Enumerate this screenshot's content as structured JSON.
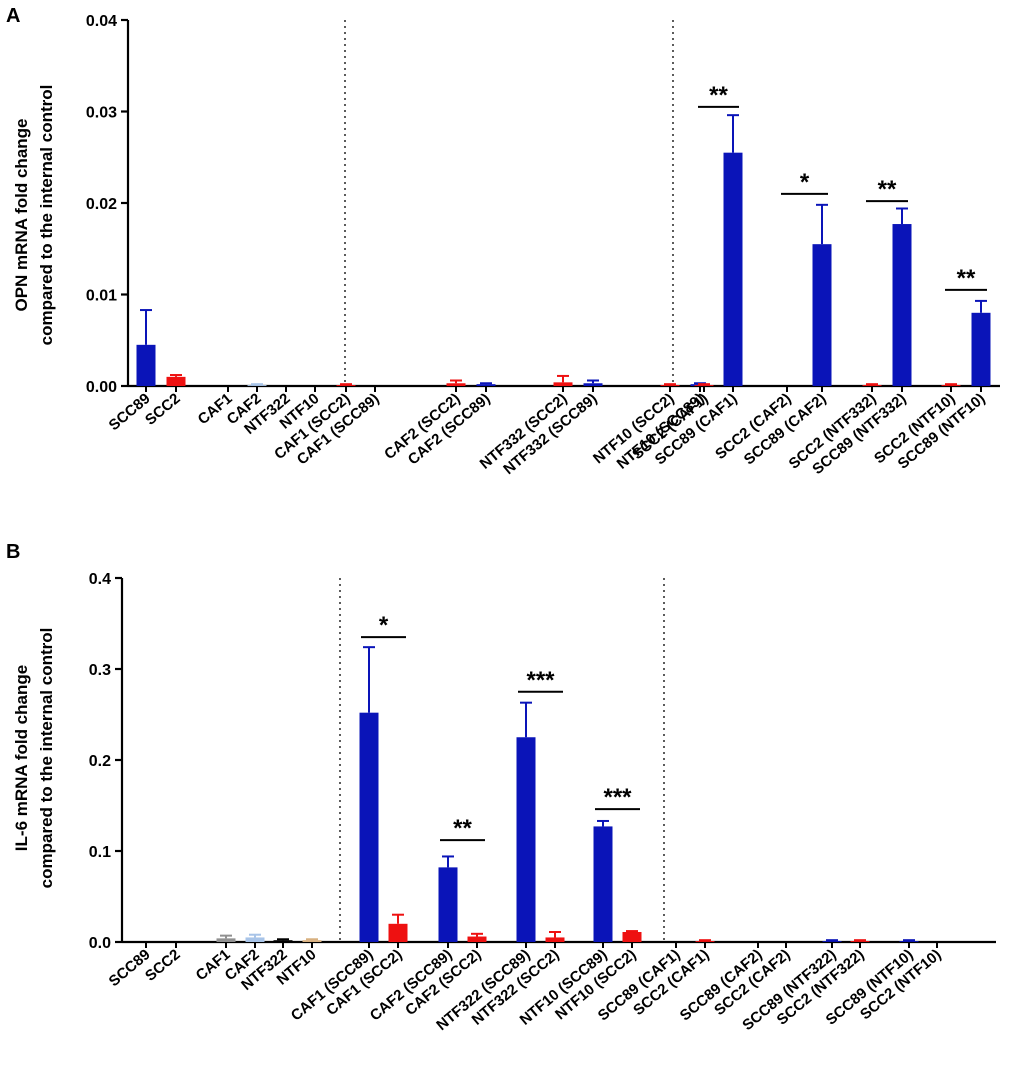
{
  "chart_data": [
    {
      "panel": "A",
      "type": "bar",
      "ylabel": [
        "OPN mRNA fold change",
        "compared to the internal control"
      ],
      "ylim": [
        0,
        0.04
      ],
      "yticks": [
        "0.00",
        "0.01",
        "0.02",
        "0.03",
        "0.04"
      ],
      "ytick_values": [
        0,
        0.01,
        0.02,
        0.03,
        0.04
      ],
      "colors": {
        "blue": "#0a14b8",
        "red": "#ee1111",
        "lightblue": "#a8c4e8",
        "grey": "#909090",
        "tan": "#d8b080",
        "black": "#000000"
      },
      "bars": [
        {
          "label": "SCC89",
          "value": 0.0045,
          "error": 0.0038,
          "color": "blue"
        },
        {
          "label": "SCC2",
          "value": 0.001,
          "error": 0.0002,
          "color": "red"
        },
        {
          "label": "CAF1",
          "value": 0.0,
          "error": 0.0,
          "color": "black"
        },
        {
          "label": "CAF2",
          "value": 0.0001,
          "error": 0.0001,
          "color": "lightblue"
        },
        {
          "label": "NTF322",
          "value": 0.0,
          "error": 0.0,
          "color": "grey"
        },
        {
          "label": "NTF10",
          "value": 0.0,
          "error": 0.0,
          "color": "tan"
        },
        {
          "label": "CAF1 (SCC2)",
          "value": 0.0001,
          "error": 0.0001,
          "color": "red"
        },
        {
          "label": "CAF1 (SCC89)",
          "value": 0.0,
          "error": 0.0,
          "color": "blue"
        },
        {
          "label": "CAF2 (SCC2)",
          "value": 0.0003,
          "error": 0.0003,
          "color": "red"
        },
        {
          "label": "CAF2 (SCC89)",
          "value": 0.0002,
          "error": 0.0001,
          "color": "blue"
        },
        {
          "label": "NTF332 (SCC2)",
          "value": 0.0004,
          "error": 0.0007,
          "color": "red"
        },
        {
          "label": "NTF332 (SCC89)",
          "value": 0.0003,
          "error": 0.0003,
          "color": "blue"
        },
        {
          "label": "NTF10 (SCC2)",
          "value": 0.0001,
          "error": 0.0001,
          "color": "red"
        },
        {
          "label": "NTF10 (SCC89)",
          "value": 0.0002,
          "error": 0.0001,
          "color": "blue"
        },
        {
          "label": "SCC2 (CAF1)",
          "value": 0.0001,
          "error": 0.0001,
          "color": "red"
        },
        {
          "label": "SCC89 (CAF1)",
          "value": 0.0255,
          "error": 0.0041,
          "color": "blue"
        },
        {
          "label": "SCC2 (CAF2)",
          "value": 0.0,
          "error": 0.0,
          "color": "red"
        },
        {
          "label": "SCC89 (CAF2)",
          "value": 0.0155,
          "error": 0.0043,
          "color": "blue"
        },
        {
          "label": "SCC2 (NTF332)",
          "value": 0.0001,
          "error": 0.0001,
          "color": "red"
        },
        {
          "label": "SCC89 (NTF332)",
          "value": 0.0177,
          "error": 0.0017,
          "color": "blue"
        },
        {
          "label": "SCC2 (NTF10)",
          "value": 0.0001,
          "error": 0.0001,
          "color": "red"
        },
        {
          "label": "SCC89 (NTF10)",
          "value": 0.008,
          "error": 0.0013,
          "color": "blue"
        }
      ],
      "separators_after": [
        5,
        13
      ],
      "significance": [
        {
          "from": 14,
          "to": 15,
          "text": "**",
          "y": 0.0305
        },
        {
          "from": 16,
          "to": 17,
          "text": "*",
          "y": 0.021
        },
        {
          "from": 18,
          "to": 19,
          "text": "**",
          "y": 0.0202
        },
        {
          "from": 20,
          "to": 21,
          "text": "**",
          "y": 0.0105
        }
      ]
    },
    {
      "panel": "B",
      "type": "bar",
      "ylabel": [
        "IL-6 mRNA fold change",
        "compared to the internal control"
      ],
      "ylim": [
        0,
        0.4
      ],
      "yticks": [
        "0.0",
        "0.1",
        "0.2",
        "0.3",
        "0.4"
      ],
      "ytick_values": [
        0,
        0.1,
        0.2,
        0.3,
        0.4
      ],
      "colors": {
        "blue": "#0a14b8",
        "red": "#ee1111",
        "lightblue": "#a8c4e8",
        "grey": "#909090",
        "tan": "#d8b080",
        "black": "#000000"
      },
      "bars": [
        {
          "label": "SCC89",
          "value": 0.0,
          "error": 0.0,
          "color": "blue"
        },
        {
          "label": "SCC2",
          "value": 0.0,
          "error": 0.0,
          "color": "red"
        },
        {
          "label": "CAF1",
          "value": 0.004,
          "error": 0.003,
          "color": "grey"
        },
        {
          "label": "CAF2",
          "value": 0.005,
          "error": 0.003,
          "color": "lightblue"
        },
        {
          "label": "NTF322",
          "value": 0.002,
          "error": 0.001,
          "color": "black"
        },
        {
          "label": "NTF10",
          "value": 0.002,
          "error": 0.001,
          "color": "tan"
        },
        {
          "label": "CAF1 (SCC89)",
          "value": 0.252,
          "error": 0.072,
          "color": "blue"
        },
        {
          "label": "CAF1 (SCC2)",
          "value": 0.02,
          "error": 0.01,
          "color": "red"
        },
        {
          "label": "CAF2 (SCC89)",
          "value": 0.082,
          "error": 0.012,
          "color": "blue"
        },
        {
          "label": "CAF2 (SCC2)",
          "value": 0.006,
          "error": 0.003,
          "color": "red"
        },
        {
          "label": "NTF322 (SCC89)",
          "value": 0.225,
          "error": 0.038,
          "color": "blue"
        },
        {
          "label": "NTF322 (SCC2)",
          "value": 0.005,
          "error": 0.006,
          "color": "red"
        },
        {
          "label": "NTF10 (SCC89)",
          "value": 0.127,
          "error": 0.006,
          "color": "blue"
        },
        {
          "label": "NTF10 (SCC2)",
          "value": 0.011,
          "error": 0.001,
          "color": "red"
        },
        {
          "label": "SCC89 (CAF1)",
          "value": 0.0,
          "error": 0.0,
          "color": "blue"
        },
        {
          "label": "SCC2 (CAF1)",
          "value": 0.001,
          "error": 0.001,
          "color": "red"
        },
        {
          "label": "SCC89 (CAF2)",
          "value": 0.0,
          "error": 0.0,
          "color": "blue"
        },
        {
          "label": "SCC2 (CAF2)",
          "value": 0.0,
          "error": 0.0,
          "color": "red"
        },
        {
          "label": "SCC89 (NTF322)",
          "value": 0.001,
          "error": 0.001,
          "color": "blue"
        },
        {
          "label": "SCC2 (NTF322)",
          "value": 0.001,
          "error": 0.001,
          "color": "red"
        },
        {
          "label": "SCC89 (NTF10)",
          "value": 0.001,
          "error": 0.001,
          "color": "blue"
        },
        {
          "label": "SCC2 (NTF10)",
          "value": 0.0,
          "error": 0.0,
          "color": "red"
        }
      ],
      "separators_after": [
        5,
        13
      ],
      "significance": [
        {
          "from": 6,
          "to": 7,
          "text": "*",
          "y": 0.335
        },
        {
          "from": 8,
          "to": 9,
          "text": "**",
          "y": 0.112
        },
        {
          "from": 10,
          "to": 11,
          "text": "***",
          "y": 0.275
        },
        {
          "from": 12,
          "to": 13,
          "text": "***",
          "y": 0.146
        }
      ]
    }
  ]
}
